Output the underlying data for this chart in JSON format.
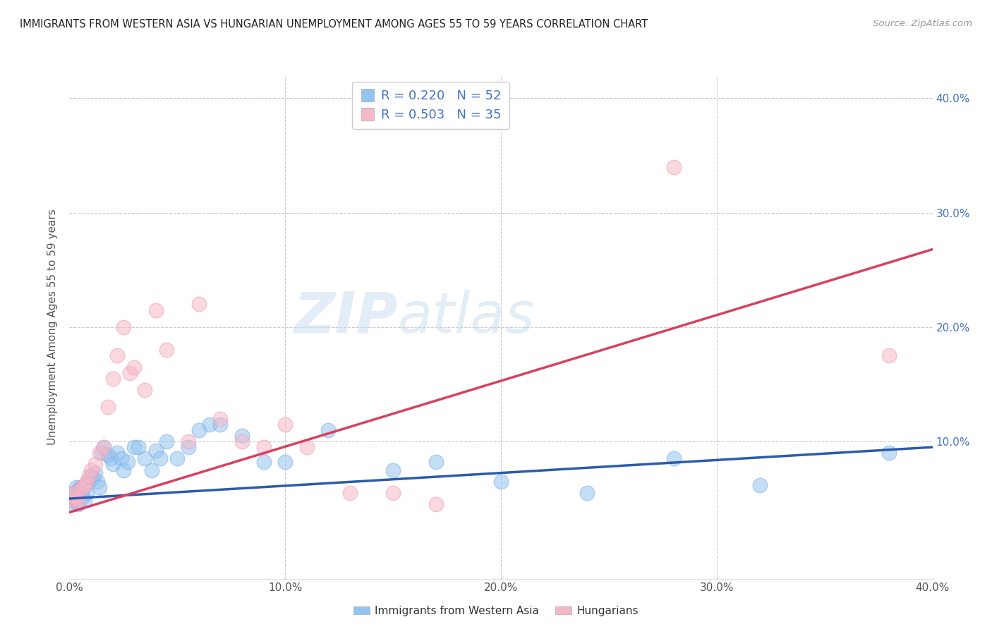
{
  "title": "IMMIGRANTS FROM WESTERN ASIA VS HUNGARIAN UNEMPLOYMENT AMONG AGES 55 TO 59 YEARS CORRELATION CHART",
  "source": "Source: ZipAtlas.com",
  "ylabel": "Unemployment Among Ages 55 to 59 years",
  "xlim": [
    0.0,
    0.4
  ],
  "ylim": [
    -0.02,
    0.42
  ],
  "xtick_labels": [
    "0.0%",
    "",
    "",
    "",
    "",
    "",
    "",
    "",
    "",
    "",
    "10.0%",
    "",
    "",
    "",
    "",
    "",
    "",
    "",
    "",
    "",
    "20.0%",
    "",
    "",
    "",
    "",
    "",
    "",
    "",
    "",
    "",
    "30.0%",
    "",
    "",
    "",
    "",
    "",
    "",
    "",
    "",
    "",
    "40.0%"
  ],
  "xtick_vals": [
    0.0,
    0.01,
    0.02,
    0.03,
    0.04,
    0.05,
    0.06,
    0.07,
    0.08,
    0.09,
    0.1,
    0.11,
    0.12,
    0.13,
    0.14,
    0.15,
    0.16,
    0.17,
    0.18,
    0.19,
    0.2,
    0.21,
    0.22,
    0.23,
    0.24,
    0.25,
    0.26,
    0.27,
    0.28,
    0.29,
    0.3,
    0.31,
    0.32,
    0.33,
    0.34,
    0.35,
    0.36,
    0.37,
    0.38,
    0.39,
    0.4
  ],
  "major_xtick_vals": [
    0.0,
    0.1,
    0.2,
    0.3,
    0.4
  ],
  "major_xtick_labels": [
    "0.0%",
    "10.0%",
    "20.0%",
    "30.0%",
    "40.0%"
  ],
  "right_ytick_labels": [
    "10.0%",
    "20.0%",
    "30.0%",
    "40.0%"
  ],
  "right_ytick_vals": [
    0.1,
    0.2,
    0.3,
    0.4
  ],
  "grid_ytick_vals": [
    0.1,
    0.2,
    0.3,
    0.4
  ],
  "blue_color": "#94C4F0",
  "blue_edge_color": "#7EB3E8",
  "pink_color": "#F5B8C8",
  "pink_edge_color": "#F0A0B8",
  "blue_line_color": "#2B5BAD",
  "pink_line_color": "#D94060",
  "legend_R1": "0.220",
  "legend_N1": "52",
  "legend_R2": "0.503",
  "legend_N2": "35",
  "watermark_zip": "ZIP",
  "watermark_atlas": "atlas",
  "blue_scatter_x": [
    0.001,
    0.001,
    0.002,
    0.002,
    0.003,
    0.003,
    0.004,
    0.004,
    0.005,
    0.005,
    0.006,
    0.006,
    0.007,
    0.008,
    0.009,
    0.01,
    0.011,
    0.012,
    0.013,
    0.014,
    0.015,
    0.016,
    0.018,
    0.019,
    0.02,
    0.022,
    0.024,
    0.025,
    0.027,
    0.03,
    0.032,
    0.035,
    0.038,
    0.04,
    0.042,
    0.045,
    0.05,
    0.055,
    0.06,
    0.065,
    0.07,
    0.08,
    0.09,
    0.1,
    0.12,
    0.15,
    0.17,
    0.2,
    0.24,
    0.28,
    0.32,
    0.38
  ],
  "blue_scatter_y": [
    0.05,
    0.045,
    0.055,
    0.048,
    0.06,
    0.052,
    0.058,
    0.045,
    0.055,
    0.06,
    0.058,
    0.052,
    0.048,
    0.055,
    0.065,
    0.07,
    0.068,
    0.072,
    0.065,
    0.06,
    0.09,
    0.095,
    0.088,
    0.085,
    0.08,
    0.09,
    0.085,
    0.075,
    0.082,
    0.095,
    0.095,
    0.085,
    0.075,
    0.092,
    0.085,
    0.1,
    0.085,
    0.095,
    0.11,
    0.115,
    0.115,
    0.105,
    0.082,
    0.082,
    0.11,
    0.075,
    0.082,
    0.065,
    0.055,
    0.085,
    0.062,
    0.09
  ],
  "pink_scatter_x": [
    0.001,
    0.001,
    0.002,
    0.003,
    0.004,
    0.005,
    0.006,
    0.007,
    0.008,
    0.009,
    0.01,
    0.012,
    0.014,
    0.016,
    0.018,
    0.02,
    0.022,
    0.025,
    0.028,
    0.03,
    0.035,
    0.04,
    0.045,
    0.055,
    0.06,
    0.07,
    0.08,
    0.09,
    0.1,
    0.11,
    0.13,
    0.15,
    0.17,
    0.28,
    0.38
  ],
  "pink_scatter_y": [
    0.048,
    0.052,
    0.055,
    0.05,
    0.048,
    0.058,
    0.06,
    0.062,
    0.065,
    0.07,
    0.075,
    0.08,
    0.09,
    0.095,
    0.13,
    0.155,
    0.175,
    0.2,
    0.16,
    0.165,
    0.145,
    0.215,
    0.18,
    0.1,
    0.22,
    0.12,
    0.1,
    0.095,
    0.115,
    0.095,
    0.055,
    0.055,
    0.045,
    0.34,
    0.175
  ],
  "blue_trend_x": [
    0.0,
    0.4
  ],
  "blue_trend_y": [
    0.05,
    0.095
  ],
  "pink_trend_x": [
    0.0,
    0.4
  ],
  "pink_trend_y": [
    0.038,
    0.268
  ]
}
